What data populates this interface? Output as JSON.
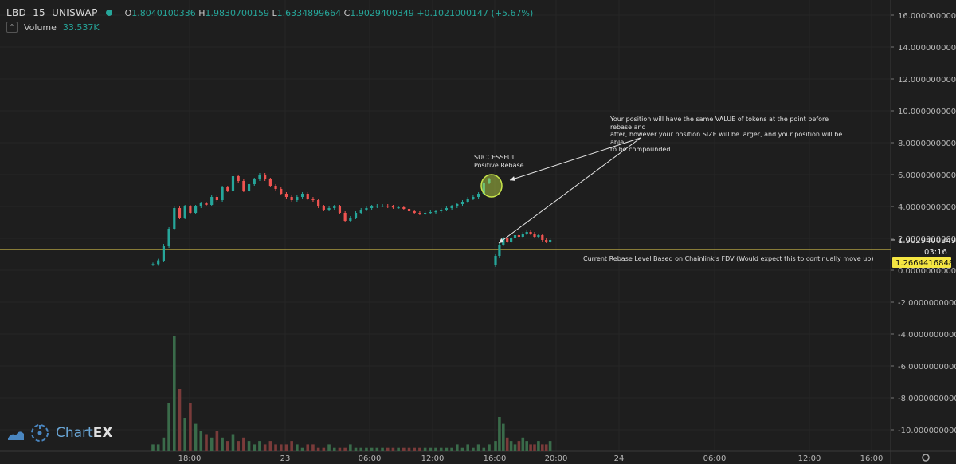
{
  "header": {
    "symbol": "LBD",
    "interval": "15",
    "exchange": "UNISWAP",
    "ohlc": {
      "o_label": "O",
      "o": "1.8040100336",
      "h_label": "H",
      "h": "1.9830700159",
      "l_label": "L",
      "l": "1.6334899664",
      "c_label": "C",
      "c": "1.9029400349",
      "change": "+0.1021000147 (+5.67%)"
    },
    "volume_label": "Volume",
    "volume_value": "33.537K"
  },
  "price_axis": {
    "ticks": [
      "16.0000000000",
      "14.0000000000",
      "12.0000000000",
      "10.0000000000",
      "8.0000000000",
      "6.0000000000",
      "4.0000000000",
      "2.0000000000",
      "0.0000000000",
      "-2.0000000000",
      "-4.0000000000",
      "-6.0000000000",
      "-8.0000000000",
      "-10.0000000000"
    ],
    "current_price": "1.9029400349",
    "countdown": "03:16",
    "rebase_price": "1.2664416848"
  },
  "time_axis": {
    "ticks": [
      "18:00",
      "23",
      "06:00",
      "12:00",
      "16:00",
      "20:00",
      "24",
      "06:00",
      "12:00",
      "16:00"
    ]
  },
  "annotations": {
    "success_line1": "SUCCESSFUL",
    "success_line2": "Positive Rebase",
    "note_line1": "Your position will have the same VALUE of tokens at the point before rebase and",
    "note_line2": "after, however your position SIZE will be larger, and your position will be able",
    "note_line3": "to be compounded",
    "rebase_label": "Current Rebase Level Based on Chainlink's FDV (Would expect this to continually move up)"
  },
  "logo": {
    "text_a": "Chart",
    "text_b": "EX"
  },
  "colors": {
    "background": "#1e1e1e",
    "up": "#26a69a",
    "down": "#ef5350",
    "rebase_line": "#c8b447",
    "highlight_circle": "#c8e64a",
    "rebase_tag_bg": "#f5e642",
    "price_tag_bg": "#1e1e1e"
  },
  "chart_data": {
    "type": "candlestick",
    "ylim": [
      -11,
      17
    ],
    "rebase_level": 1.2664416848,
    "candles": [
      [
        0.36,
        0.38
      ],
      [
        0.38,
        0.62
      ],
      [
        0.6,
        1.55
      ],
      [
        1.5,
        2.6
      ],
      [
        2.6,
        3.9
      ],
      [
        3.9,
        3.3
      ],
      [
        3.3,
        4.0
      ],
      [
        4.0,
        3.6
      ],
      [
        3.6,
        4.0
      ],
      [
        4.0,
        4.2
      ],
      [
        4.2,
        4.1
      ],
      [
        4.1,
        4.6
      ],
      [
        4.6,
        4.4
      ],
      [
        4.4,
        5.2
      ],
      [
        5.2,
        5.0
      ],
      [
        5.0,
        5.9
      ],
      [
        5.9,
        5.6
      ],
      [
        5.6,
        5.0
      ],
      [
        5.0,
        5.4
      ],
      [
        5.4,
        5.7
      ],
      [
        5.7,
        6.0
      ],
      [
        6.0,
        5.7
      ],
      [
        5.7,
        5.3
      ],
      [
        5.3,
        5.1
      ],
      [
        5.1,
        4.8
      ],
      [
        4.8,
        4.6
      ],
      [
        4.6,
        4.4
      ],
      [
        4.4,
        4.6
      ],
      [
        4.6,
        4.8
      ],
      [
        4.8,
        4.5
      ],
      [
        4.5,
        4.4
      ],
      [
        4.4,
        4.0
      ],
      [
        4.0,
        3.8
      ],
      [
        3.8,
        3.9
      ],
      [
        3.9,
        4.0
      ],
      [
        4.0,
        3.6
      ],
      [
        3.6,
        3.1
      ],
      [
        3.1,
        3.3
      ],
      [
        3.3,
        3.6
      ],
      [
        3.6,
        3.8
      ],
      [
        3.8,
        3.9
      ],
      [
        3.9,
        4.0
      ],
      [
        4.0,
        4.05
      ],
      [
        4.05,
        4.05
      ],
      [
        4.05,
        4.0
      ],
      [
        4.0,
        3.95
      ],
      [
        3.95,
        3.95
      ],
      [
        3.95,
        3.85
      ],
      [
        3.85,
        3.7
      ],
      [
        3.7,
        3.6
      ],
      [
        3.6,
        3.55
      ],
      [
        3.55,
        3.6
      ],
      [
        3.6,
        3.65
      ],
      [
        3.65,
        3.7
      ],
      [
        3.7,
        3.8
      ],
      [
        3.8,
        3.9
      ],
      [
        3.9,
        4.0
      ],
      [
        4.0,
        4.15
      ],
      [
        4.15,
        4.3
      ],
      [
        4.3,
        4.5
      ],
      [
        4.5,
        4.6
      ],
      [
        4.6,
        4.8
      ],
      [
        4.8,
        5.5
      ],
      [
        5.5,
        5.7
      ],
      [
        0.3,
        0.9
      ],
      [
        0.9,
        1.6
      ],
      [
        1.6,
        2.0
      ],
      [
        2.0,
        1.8
      ],
      [
        1.8,
        2.0
      ],
      [
        2.0,
        2.2
      ],
      [
        2.2,
        2.1
      ],
      [
        2.1,
        2.3
      ],
      [
        2.3,
        2.4
      ],
      [
        2.4,
        2.3
      ],
      [
        2.3,
        2.1
      ],
      [
        2.1,
        2.2
      ],
      [
        2.2,
        1.9
      ],
      [
        1.9,
        1.8
      ],
      [
        1.8,
        1.9
      ]
    ],
    "volume_max_label": "volume"
  }
}
